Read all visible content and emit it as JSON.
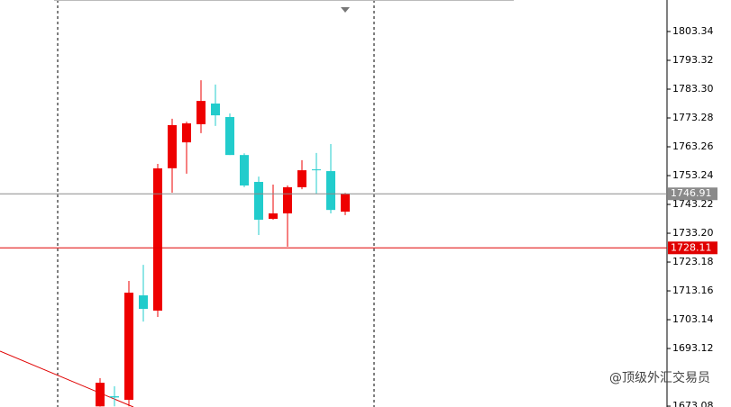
{
  "chart_data": {
    "type": "candlestick",
    "up_color": "#ee0000",
    "down_color": "#22cccc",
    "open": [
      1673.0,
      1676.5,
      1675.28,
      1711.6,
      1706.3,
      1755.8,
      1764.8,
      1771.1,
      1778.3,
      1773.6,
      1760.4,
      1751.05,
      1738.2,
      1740.1,
      1749.2,
      1755.4,
      1754.8,
      1740.7
    ],
    "high": [
      1682.8,
      1680.0,
      1716.6,
      1722.2,
      1757.3,
      1773.0,
      1772.0,
      1786.4,
      1784.9,
      1774.85,
      1761.0,
      1752.9,
      1750.1,
      1749.8,
      1758.6,
      1761.1,
      1764.2,
      1747.2
    ],
    "low": [
      1672.9,
      1673.0,
      1673.0,
      1702.5,
      1704.1,
      1747.3,
      1753.9,
      1768.0,
      1770.5,
      1760.4,
      1749.2,
      1732.6,
      1737.9,
      1728.5,
      1748.5,
      1747.0,
      1740.1,
      1739.5
    ],
    "close": [
      1681.2,
      1676.1,
      1712.54,
      1706.9,
      1755.75,
      1770.8,
      1771.4,
      1779.2,
      1774.2,
      1760.4,
      1749.8,
      1737.9,
      1740.1,
      1749.2,
      1755.1,
      1755.1,
      1741.3,
      1746.91
    ],
    "ylim": [
      1672.78,
      1814.3
    ],
    "yticks": [
      1803.34,
      1793.32,
      {
        "value": 1783.3,
        "label": "1783.30"
      },
      1773.28,
      1763.26,
      1753.24,
      1743.22,
      {
        "value": 1733.2,
        "label": "1733.20"
      },
      1723.18,
      1713.16,
      1703.14,
      1693.12,
      1673.08
    ],
    "price_lines": [
      {
        "value": 1746.91,
        "color": "#8a8a8a"
      },
      {
        "value": 1728.11,
        "color": "#e00000"
      }
    ],
    "watermark": "@顶级外汇交易员"
  }
}
